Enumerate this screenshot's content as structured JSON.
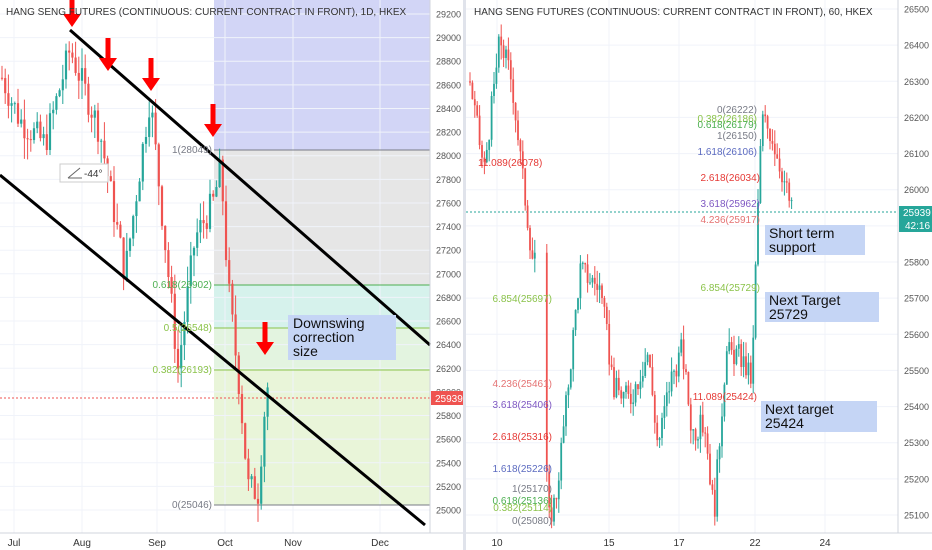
{
  "panels": [
    {
      "title": "HANG SENG FUTURES (CONTINUOUS: CURRENT CONTRACT IN FRONT), 1D, HKEX",
      "price_tag": "25939",
      "angle_label": "-44°",
      "fib_labels": [
        {
          "text": "1(28049)",
          "color": "#787b86"
        },
        {
          "text": "0.618(26902)",
          "color": "#4caf50"
        },
        {
          "text": "0.5(26548)",
          "color": "#8bc34a"
        },
        {
          "text": "0.382(26193)",
          "color": "#8bc34a"
        },
        {
          "text": "0(25046)",
          "color": "#787b86"
        }
      ],
      "annotation": "Downswing\ncorrection\nsize",
      "annotation_lines": [
        "Downswing",
        "correction",
        "size"
      ],
      "x_ticks": [
        "Jul",
        "Aug",
        "Sep",
        "Oct",
        "Nov",
        "Dec"
      ],
      "y_ticks": [
        "29200",
        "29000",
        "28800",
        "28600",
        "28400",
        "28200",
        "28000",
        "27800",
        "27600",
        "27400",
        "27200",
        "27000",
        "26800",
        "26600",
        "26400",
        "26200",
        "26000",
        "25800",
        "25600",
        "25400",
        "25200",
        "25000"
      ]
    },
    {
      "title": "HANG SENG FUTURES (CONTINUOUS: CURRENT CONTRACT IN FRONT), 60, HKEX",
      "price_tag": "25939",
      "time_tag": "42:16",
      "fib_labels": [
        {
          "text": "0(26222)",
          "color": "#787b86"
        },
        {
          "text": "0.382(26186)",
          "color": "#8bc34a"
        },
        {
          "text": "0.618(26179)",
          "color": "#4caf50"
        },
        {
          "text": "1(26150)",
          "color": "#787b86"
        },
        {
          "text": "1.618(26106)",
          "color": "#5c6bc0"
        },
        {
          "text": "2.618(26034)",
          "color": "#e53935"
        },
        {
          "text": "3.618(25962)",
          "color": "#7e57c2"
        },
        {
          "text": "4.236(25917)",
          "color": "#e57373"
        },
        {
          "text": "6.854(25729)",
          "color": "#8bc34a"
        },
        {
          "text": "11.089(26078)",
          "color": "#e53935"
        },
        {
          "text": "6.854(25697)",
          "color": "#8bc34a"
        },
        {
          "text": "4.236(25461)",
          "color": "#e57373"
        },
        {
          "text": "11.089(25424)",
          "color": "#e53935"
        },
        {
          "text": "3.618(25406)",
          "color": "#7e57c2"
        },
        {
          "text": "2.618(25316)",
          "color": "#e53935"
        },
        {
          "text": "1.618(25226)",
          "color": "#5c6bc0"
        },
        {
          "text": "1(25170)",
          "color": "#787b86"
        },
        {
          "text": "0.618(25136)",
          "color": "#4caf50"
        },
        {
          "text": "0.382(25114)",
          "color": "#8bc34a"
        },
        {
          "text": "0(25080)",
          "color": "#787b86"
        }
      ],
      "annotations": [
        {
          "lines": [
            "Short term",
            "support"
          ]
        },
        {
          "lines": [
            "Next Target",
            "25729"
          ]
        },
        {
          "lines": [
            "Next target",
            "25424"
          ]
        }
      ],
      "x_ticks": [
        "10",
        "15",
        "17",
        "22",
        "24"
      ],
      "y_ticks": [
        "26500",
        "26400",
        "26300",
        "26200",
        "26100",
        "26000",
        "25900",
        "25800",
        "25700",
        "25600",
        "25500",
        "25400",
        "25300",
        "25200",
        "25100"
      ]
    }
  ],
  "colors": {
    "up": "#26a69a",
    "down": "#ef5350",
    "arrow": "#ff0000",
    "annotation_bg": "#c5d5f5",
    "price_tag_bg": "#ef5350",
    "time_tag_bg": "#26a69a"
  },
  "chart_data": [
    {
      "type": "candlestick",
      "title": "HANG SENG FUTURES (CONTINUOUS: CURRENT CONTRACT IN FRONT), 1D, HKEX",
      "x_range": [
        "Jul",
        "Dec"
      ],
      "ylim": [
        24900,
        29300
      ],
      "last_price": 25939,
      "fibonacci_retracement": [
        {
          "level": "1",
          "value": 28049
        },
        {
          "level": "0.618",
          "value": 26902
        },
        {
          "level": "0.5",
          "value": 26548
        },
        {
          "level": "0.382",
          "value": 26193
        },
        {
          "level": "0",
          "value": 25046
        }
      ],
      "channel_angle": "-44°",
      "x_ticks": [
        "Jul",
        "Aug",
        "Sep",
        "Oct",
        "Nov",
        "Dec"
      ]
    },
    {
      "type": "candlestick",
      "title": "HANG SENG FUTURES (CONTINUOUS: CURRENT CONTRACT IN FRONT), 60, HKEX",
      "x_range": [
        "9",
        "24"
      ],
      "ylim": [
        25050,
        26520
      ],
      "last_price": 25939,
      "fibonacci_extension_upper": [
        {
          "level": "0",
          "value": 26222
        },
        {
          "level": "0.382",
          "value": 26186
        },
        {
          "level": "0.618",
          "value": 26179
        },
        {
          "level": "1",
          "value": 26150
        },
        {
          "level": "1.618",
          "value": 26106
        },
        {
          "level": "2.618",
          "value": 26034
        },
        {
          "level": "3.618",
          "value": 25962
        },
        {
          "level": "4.236",
          "value": 25917
        },
        {
          "level": "6.854",
          "value": 25729
        },
        {
          "level": "11.089",
          "value": 25424
        }
      ],
      "fibonacci_extension_lower": [
        {
          "level": "0",
          "value": 25080
        },
        {
          "level": "0.382",
          "value": 25114
        },
        {
          "level": "0.618",
          "value": 25136
        },
        {
          "level": "1",
          "value": 25170
        },
        {
          "level": "1.618",
          "value": 25226
        },
        {
          "level": "2.618",
          "value": 25316
        },
        {
          "level": "3.618",
          "value": 25406
        },
        {
          "level": "4.236",
          "value": 25461
        },
        {
          "level": "6.854",
          "value": 25697
        },
        {
          "level": "11.089",
          "value": 26078
        }
      ],
      "x_ticks": [
        "10",
        "15",
        "17",
        "22",
        "24"
      ]
    }
  ]
}
